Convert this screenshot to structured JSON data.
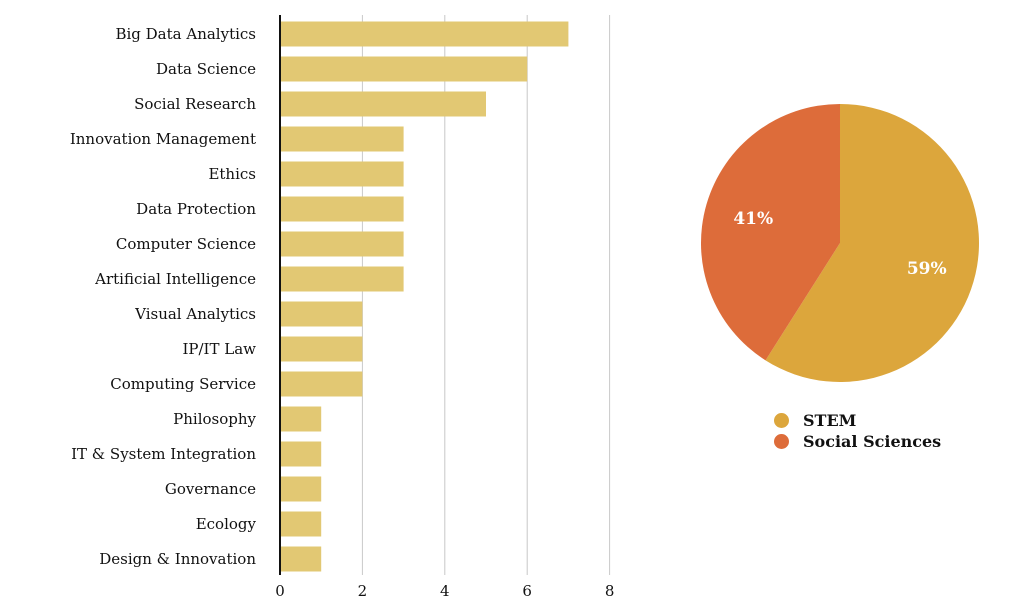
{
  "chart_data": [
    {
      "type": "bar",
      "orientation": "horizontal",
      "categories": [
        "Big Data Analytics",
        "Data Science",
        "Social Research",
        "Innovation Management",
        "Ethics",
        "Data Protection",
        "Computer Science",
        "Artificial Intelligence",
        "Visual Analytics",
        "IP/IT Law",
        "Computing Service",
        "Philosophy",
        "IT & System Integration",
        "Governance",
        "Ecology",
        "Design & Innovation"
      ],
      "values": [
        7,
        6,
        5,
        3,
        3,
        3,
        3,
        3,
        2,
        2,
        2,
        1,
        1,
        1,
        1,
        1
      ],
      "xlim": [
        0,
        8
      ],
      "xticks": [
        "0",
        "2",
        "4",
        "6",
        "8"
      ],
      "grid": "vertical",
      "bar_color": "#E2C873"
    },
    {
      "type": "pie",
      "slices": [
        {
          "label": "STEM",
          "value": 59,
          "text": "59%",
          "color": "#DCA63C"
        },
        {
          "label": "Social Sciences",
          "value": 41,
          "text": "41%",
          "color": "#DD6C3A"
        }
      ],
      "legend": "bottom"
    }
  ],
  "legend": {
    "items": [
      "STEM",
      "Social Sciences"
    ]
  }
}
